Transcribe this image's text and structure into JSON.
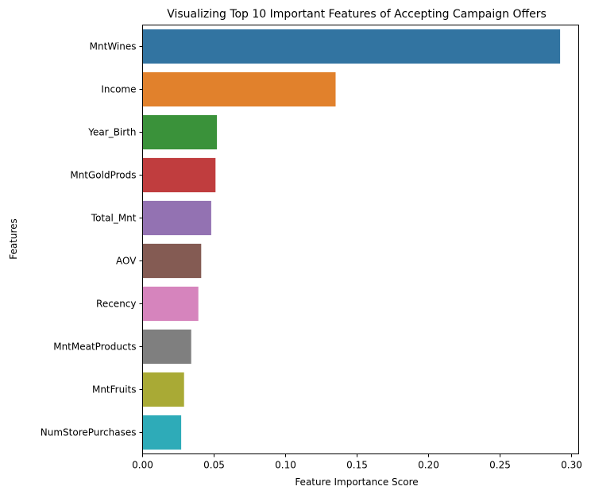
{
  "chart_data": {
    "type": "bar",
    "orientation": "horizontal",
    "title": "Visualizing Top 10 Important Features of Accepting Campaign Offers",
    "xlabel": "Feature Importance Score",
    "ylabel": "Features",
    "categories": [
      "MntWines",
      "Income",
      "Year_Birth",
      "MntGoldProds",
      "Total_Mnt",
      "AOV",
      "Recency",
      "MntMeatProducts",
      "MntFruits",
      "NumStorePurchases"
    ],
    "values": [
      0.292,
      0.135,
      0.052,
      0.051,
      0.048,
      0.041,
      0.039,
      0.034,
      0.029,
      0.027
    ],
    "colors": [
      "#3274a1",
      "#e1812c",
      "#3a923a",
      "#c03d3e",
      "#9372b2",
      "#845b53",
      "#d684bd",
      "#7f7f7f",
      "#a9aa35",
      "#2eabb8"
    ],
    "xlim": [
      0,
      0.305
    ],
    "xticks": [
      "0.00",
      "0.05",
      "0.10",
      "0.15",
      "0.20",
      "0.25",
      "0.30"
    ],
    "grid": false,
    "legend": "none"
  }
}
